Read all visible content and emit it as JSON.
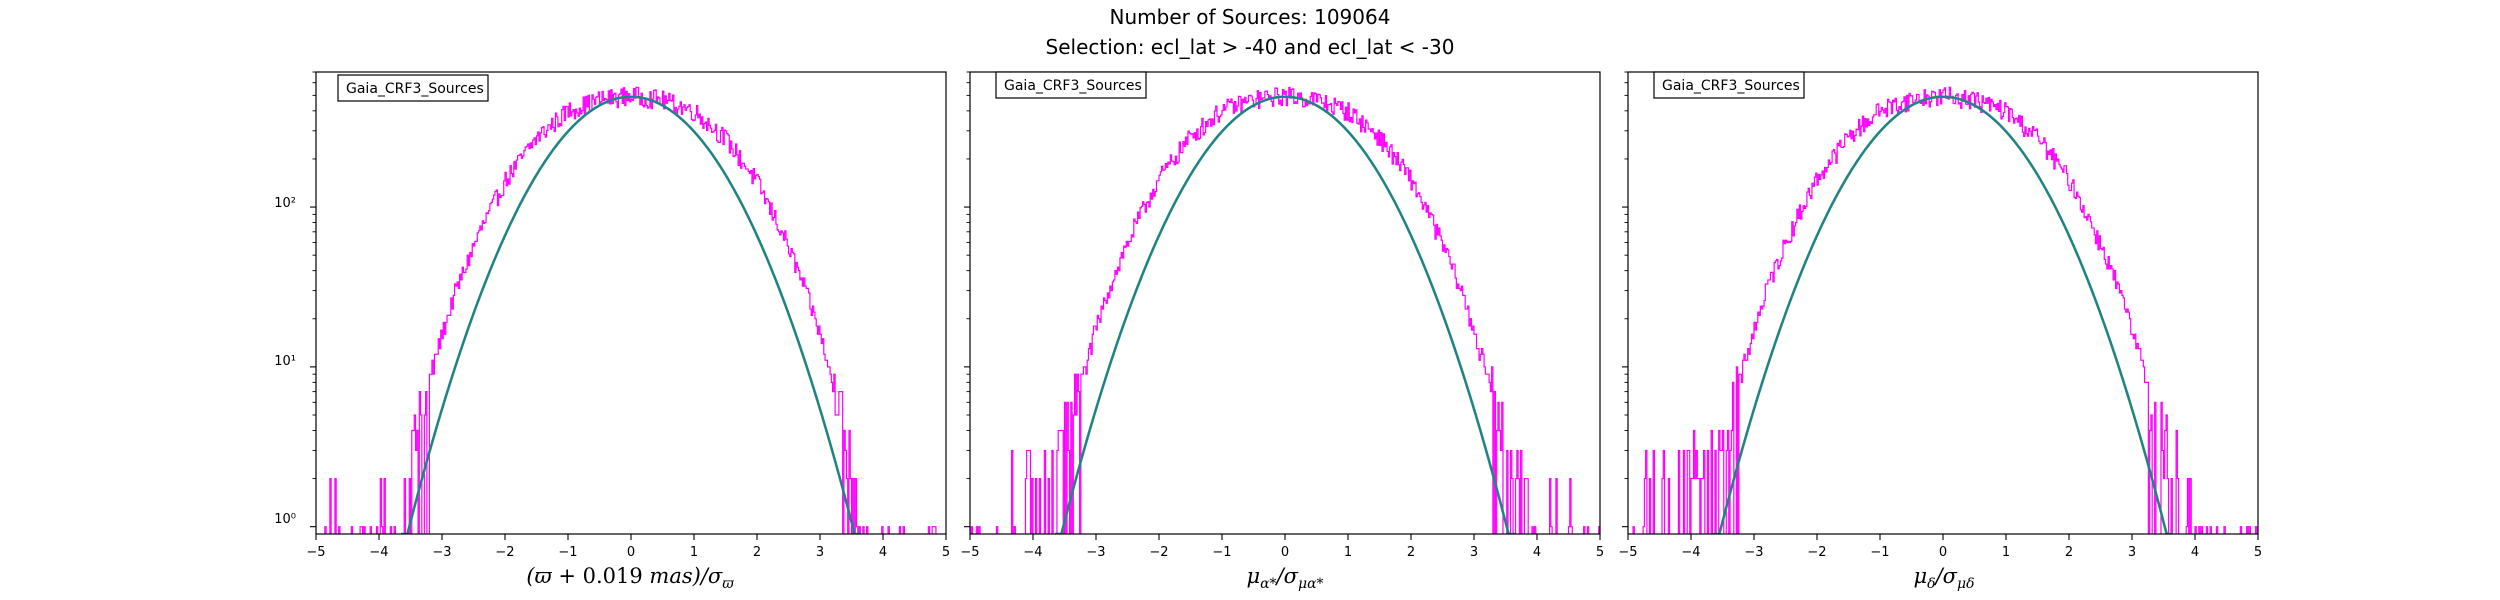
{
  "figure": {
    "title_line1": "Number of Sources: 109064",
    "title_line2": "Selection: ecl_lat > -40 and ecl_lat < -30",
    "colors": {
      "histogram": "#ff00ff",
      "model": "#1f77b4",
      "fit": "#2ca02c"
    }
  },
  "chart_data": [
    {
      "type": "line",
      "legend": "Gaia_CRF3_Sources",
      "xlabel": "(ϖ + 0.019 mas)/σϖ",
      "ylabel": "",
      "xlim": [
        -5,
        5
      ],
      "ylim": [
        0.9,
        700
      ],
      "yscale": "log",
      "xticks": [
        -5,
        -4,
        -3,
        -2,
        -1,
        0,
        1,
        2,
        3,
        4,
        5
      ],
      "yticks": [
        "10⁰",
        "10¹",
        "10²"
      ],
      "grid": false,
      "series": [
        {
          "kind": "histogram",
          "x": [
            -4.95,
            -4.75,
            -4.5,
            -4.2,
            -4.0,
            -3.8,
            -3.6,
            -3.4,
            -3.2,
            -3.0,
            -2.8,
            -2.6,
            -2.4,
            -2.2,
            -2.0,
            -1.5,
            -1.0,
            -0.5,
            0.0,
            0.5,
            1.0,
            1.5,
            2.0,
            2.2,
            2.4,
            2.6,
            2.8,
            3.0,
            3.2,
            3.4,
            3.6,
            3.8,
            4.0,
            4.2,
            4.6,
            4.9
          ],
          "y": [
            1,
            2,
            1,
            1,
            2,
            1,
            2,
            4,
            8,
            16,
            28,
            45,
            70,
            100,
            145,
            270,
            400,
            470,
            500,
            470,
            400,
            270,
            145,
            100,
            70,
            45,
            28,
            16,
            8,
            4,
            2,
            1,
            1,
            1,
            1,
            1
          ]
        },
        {
          "kind": "model",
          "mu": 0.0,
          "sigma": 1.0,
          "amplitude": 490
        }
      ]
    },
    {
      "type": "line",
      "legend": "Gaia_CRF3_Sources",
      "xlabel": "μα*/σμα*",
      "ylabel": "",
      "xlim": [
        -5,
        5
      ],
      "ylim": [
        0.9,
        700
      ],
      "yscale": "log",
      "xticks": [
        -5,
        -4,
        -3,
        -2,
        -1,
        0,
        1,
        2,
        3,
        4,
        5
      ],
      "yticks": [
        "10⁰",
        "10¹",
        "10²"
      ],
      "grid": false,
      "series": [
        {
          "kind": "histogram",
          "x": [
            -4.95,
            -4.75,
            -4.5,
            -4.2,
            -4.0,
            -3.8,
            -3.6,
            -3.4,
            -3.2,
            -3.0,
            -2.8,
            -2.6,
            -2.4,
            -2.2,
            -2.0,
            -1.5,
            -1.0,
            -0.5,
            0.0,
            0.5,
            1.0,
            1.5,
            2.0,
            2.2,
            2.4,
            2.6,
            2.8,
            3.0,
            3.2,
            3.4,
            3.6,
            3.8,
            4.0,
            4.2,
            4.6,
            4.9
          ],
          "y": [
            1,
            1,
            2,
            2,
            2,
            2,
            3,
            5,
            9,
            17,
            30,
            48,
            72,
            105,
            150,
            275,
            405,
            470,
            500,
            470,
            400,
            275,
            150,
            105,
            72,
            48,
            30,
            17,
            9,
            5,
            3,
            2,
            1,
            2,
            1,
            1
          ]
        },
        {
          "kind": "model",
          "mu": 0.0,
          "sigma": 1.0,
          "amplitude": 490
        }
      ]
    },
    {
      "type": "line",
      "legend": "Gaia_CRF3_Sources",
      "xlabel": "μδ/σμδ",
      "ylabel": "",
      "xlim": [
        -5,
        5
      ],
      "ylim": [
        0.9,
        700
      ],
      "yscale": "log",
      "xticks": [
        -5,
        -4,
        -3,
        -2,
        -1,
        0,
        1,
        2,
        3,
        4,
        5
      ],
      "yticks": [
        "10⁰",
        "10¹",
        "10²"
      ],
      "grid": false,
      "series": [
        {
          "kind": "histogram",
          "x": [
            -4.95,
            -4.75,
            -4.5,
            -4.2,
            -4.0,
            -3.8,
            -3.6,
            -3.4,
            -3.2,
            -3.0,
            -2.8,
            -2.6,
            -2.4,
            -2.2,
            -2.0,
            -1.5,
            -1.0,
            -0.5,
            0.0,
            0.5,
            1.0,
            1.5,
            2.0,
            2.2,
            2.4,
            2.6,
            2.8,
            3.0,
            3.2,
            3.4,
            3.6,
            3.8,
            4.0,
            4.2,
            4.6,
            4.9
          ],
          "y": [
            1,
            2,
            2,
            2,
            3,
            3,
            3,
            5,
            9,
            17,
            30,
            48,
            72,
            105,
            150,
            275,
            405,
            470,
            500,
            470,
            400,
            275,
            150,
            105,
            72,
            48,
            30,
            17,
            9,
            5,
            3,
            2,
            1,
            1,
            1,
            1
          ]
        },
        {
          "kind": "model",
          "mu": 0.0,
          "sigma": 1.0,
          "amplitude": 490
        }
      ]
    }
  ]
}
